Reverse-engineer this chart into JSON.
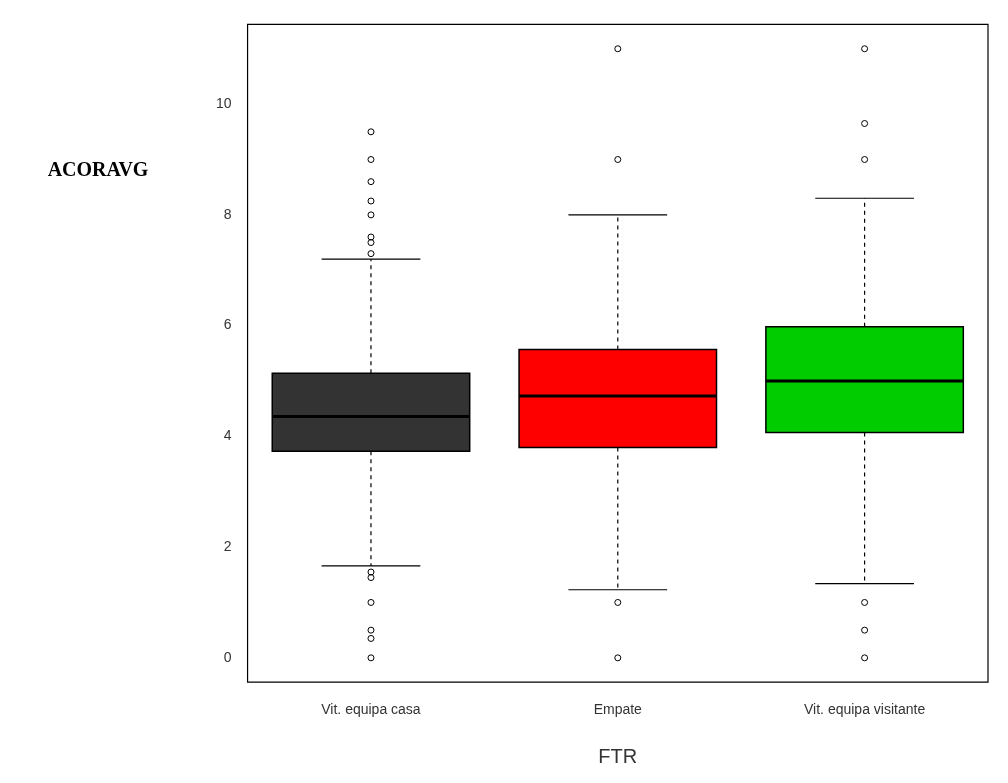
{
  "chart_data": {
    "type": "box",
    "xlabel": "FTR",
    "ylabel": "ACORAVG",
    "categories": [
      "Vit. equipa casa",
      "Empate",
      "Vit. equipa visitante"
    ],
    "colors": [
      "#333333",
      "#ff0000",
      "#00cc00"
    ],
    "boxes": [
      {
        "low": 1.66,
        "q1": 3.73,
        "median": 4.36,
        "q3": 5.14,
        "high": 7.2,
        "outliers": [
          9.5,
          9.0,
          8.6,
          8.25,
          8.0,
          7.6,
          7.5,
          7.3,
          1.55,
          1.45,
          1.0,
          0.5,
          0.35,
          0
        ]
      },
      {
        "low": 1.23,
        "q1": 3.8,
        "median": 4.73,
        "q3": 5.57,
        "high": 8.0,
        "outliers": [
          11,
          9,
          1,
          0
        ]
      },
      {
        "low": 1.34,
        "q1": 4.07,
        "median": 5.0,
        "q3": 5.98,
        "high": 8.3,
        "outliers": [
          11,
          9.65,
          9.0,
          1.0,
          0.5,
          0
        ]
      }
    ],
    "ylim": [
      -0.44,
      11.44
    ],
    "yticks": [
      0,
      2,
      4,
      6,
      8,
      10
    ],
    "grid": false,
    "legend": false,
    "marker": "circle"
  }
}
